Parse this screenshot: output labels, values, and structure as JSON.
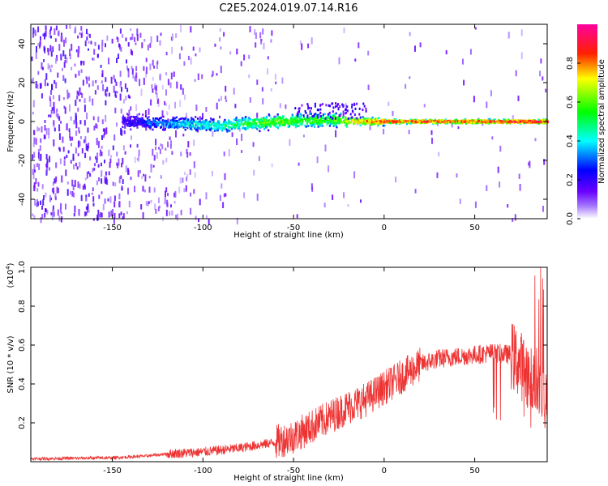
{
  "figure": {
    "title": "C2E5.2024.019.07.14.R16"
  },
  "chart_data": [
    {
      "type": "heatmap",
      "xlabel": "Height of straight line (km)",
      "ylabel": "Frequency (Hz)",
      "xlim": [
        -195,
        90
      ],
      "ylim": [
        -50,
        50
      ],
      "xticks": [
        -150,
        -100,
        -50,
        0,
        50
      ],
      "yticks": [
        -40,
        -20,
        0,
        20,
        40
      ],
      "grid": false,
      "colorbar": {
        "label": "Normalized spectral amplitude",
        "range": [
          0,
          1
        ],
        "ticks": [
          0.0,
          0.2,
          0.4,
          0.6,
          0.8
        ],
        "colors": [
          "#ffffff",
          "#7a00ff",
          "#0000ff",
          "#00ffff",
          "#00ff00",
          "#ffff00",
          "#ff0000",
          "#ff00aa"
        ]
      },
      "ridge": [
        {
          "x": -140,
          "y": 0,
          "level": 0.2
        },
        {
          "x": -120,
          "y": -1,
          "level": 0.35
        },
        {
          "x": -90,
          "y": -2,
          "level": 0.45
        },
        {
          "x": -60,
          "y": 0,
          "level": 0.6
        },
        {
          "x": -30,
          "y": 1,
          "level": 0.55
        },
        {
          "x": -15,
          "y": 0,
          "level": 0.75
        },
        {
          "x": 0,
          "y": 0,
          "level": 0.85
        },
        {
          "x": 50,
          "y": 0,
          "level": 0.85
        },
        {
          "x": 88,
          "y": 0,
          "level": 0.9
        }
      ]
    },
    {
      "type": "line",
      "xlabel": "Height of straight line (km)",
      "ylabel": "SNR (10 * v/v)",
      "ylabel_exponent": "(x10",
      "ylabel_exponent_power": "4",
      "ylabel_exponent_close": ")",
      "xlim": [
        -195,
        90
      ],
      "ylim": [
        0,
        1.0
      ],
      "xticks": [
        -150,
        -100,
        -50,
        0,
        50
      ],
      "yticks": [
        0.2,
        0.4,
        0.6,
        0.8,
        1.0
      ],
      "grid": false,
      "series": [
        {
          "color": "#ee3333",
          "envelope_x": [
            -195,
            -150,
            -130,
            -120,
            -100,
            -80,
            -60,
            -50,
            -40,
            -30,
            -20,
            -10,
            -5,
            0,
            10,
            20,
            30,
            40,
            50,
            60,
            70,
            75,
            80,
            85,
            88,
            90
          ],
          "envelope_y": [
            0.015,
            0.02,
            0.03,
            0.04,
            0.05,
            0.07,
            0.1,
            0.13,
            0.18,
            0.23,
            0.28,
            0.32,
            0.35,
            0.38,
            0.44,
            0.5,
            0.53,
            0.54,
            0.55,
            0.56,
            0.55,
            0.5,
            0.45,
            0.4,
            0.35,
            0.3
          ]
        }
      ]
    }
  ]
}
